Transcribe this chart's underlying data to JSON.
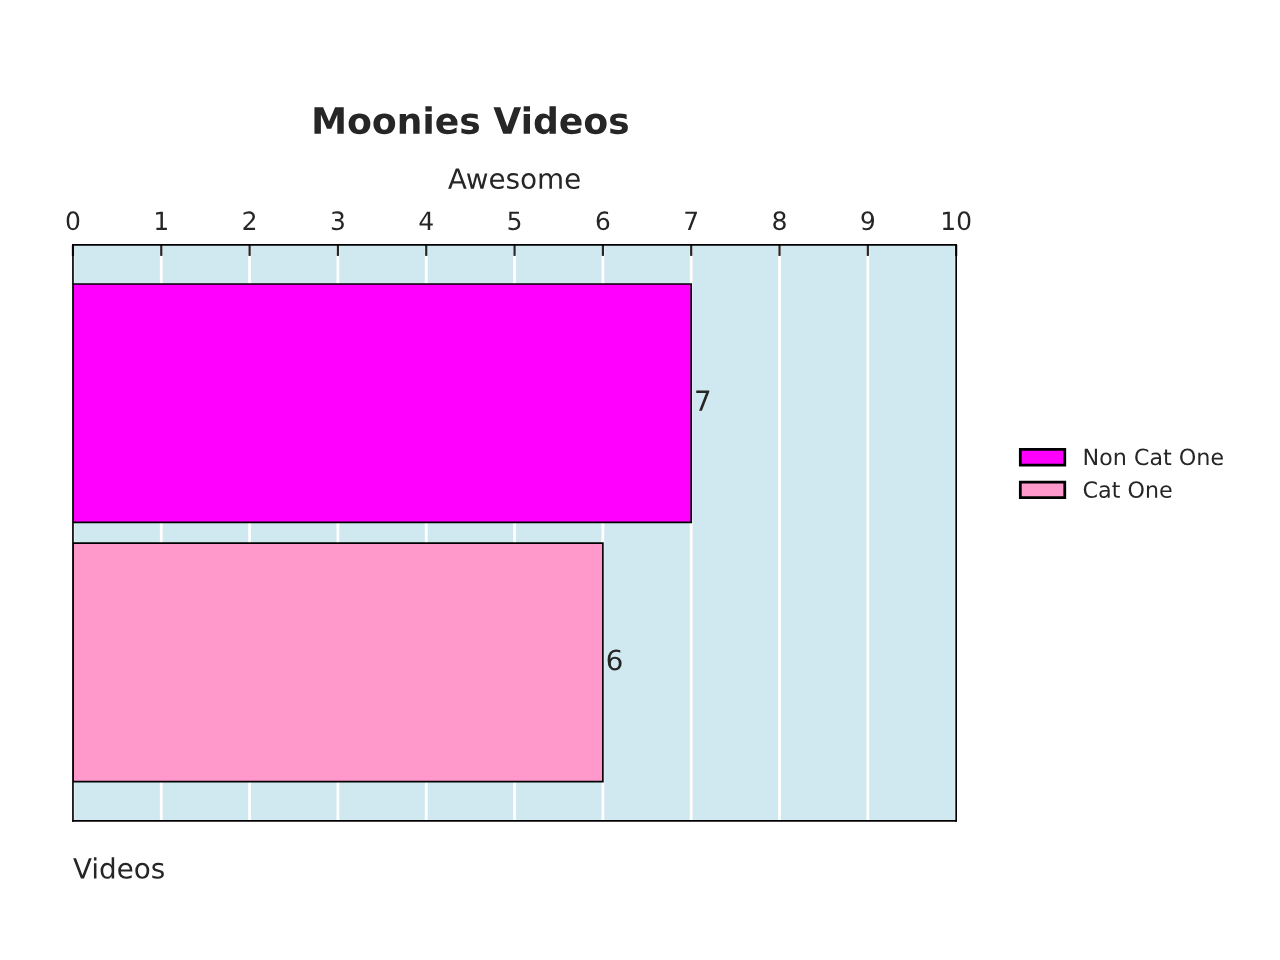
{
  "chart_data": {
    "type": "bar",
    "orientation": "horizontal",
    "title": "Moonies Videos",
    "xlabel": "Awesome",
    "annotations": [
      "Videos"
    ],
    "categories": [
      null
    ],
    "series": [
      {
        "name": "Non Cat One",
        "color": "#ff00ff",
        "values": [
          7
        ]
      },
      {
        "name": "Cat One",
        "color": "#ff99cc",
        "values": [
          6
        ]
      }
    ],
    "xlim": [
      0,
      10
    ],
    "xticks": [
      0,
      1,
      2,
      3,
      4,
      5,
      6,
      7,
      8,
      9,
      10
    ],
    "grid": "x",
    "legend": "right",
    "data_labels": true
  }
}
